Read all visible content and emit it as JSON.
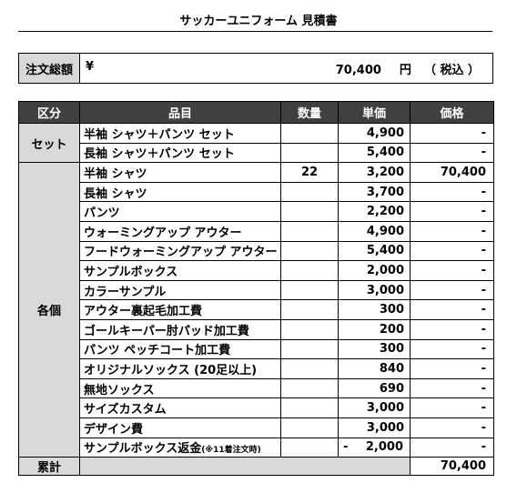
{
  "title": "サッカーユニフォーム 見積書",
  "total_box": {
    "label": "注文総額",
    "currency": "¥",
    "amount": "70,400",
    "unit": "円",
    "tax": "（ 税込 ）"
  },
  "columns": {
    "category": "区分",
    "item": "品目",
    "quantity": "数量",
    "unit_price": "単価",
    "price": "価格"
  },
  "categories": {
    "set": "セット",
    "each": "各個",
    "subtotal": "累計"
  },
  "set_rows": [
    {
      "name": "半袖 シャツ＋パンツ セット",
      "qty": "",
      "unit_price": "4,900",
      "price": "-"
    },
    {
      "name": "長袖 シャツ＋パンツ セット",
      "qty": "",
      "unit_price": "5,400",
      "price": "-"
    }
  ],
  "each_rows": [
    {
      "name": "半袖 シャツ",
      "qty": "22",
      "unit_price": "3,200",
      "price": "70,400"
    },
    {
      "name": "長袖 シャツ",
      "qty": "",
      "unit_price": "3,700",
      "price": "-"
    },
    {
      "name": "パンツ",
      "qty": "",
      "unit_price": "2,200",
      "price": "-"
    },
    {
      "name": "ウォーミングアップ  アウター",
      "qty": "",
      "unit_price": "4,900",
      "price": "-"
    },
    {
      "name": "フードウォーミングアップ アウター",
      "qty": "",
      "unit_price": "5,400",
      "price": "-"
    },
    {
      "name": "サンプルボックス",
      "qty": "",
      "unit_price": "2,000",
      "price": "-"
    },
    {
      "name": "カラーサンプル",
      "qty": "",
      "unit_price": "3,000",
      "price": "-"
    },
    {
      "name": "アウター裏起毛加工費",
      "qty": "",
      "unit_price": "300",
      "price": "-"
    },
    {
      "name": "ゴールキーパー肘パッド加工費",
      "qty": "",
      "unit_price": "200",
      "price": "-"
    },
    {
      "name": "パンツ ペッチコート加工費",
      "qty": "",
      "unit_price": "300",
      "price": "-"
    },
    {
      "name": "オリジナルソックス (20足以上)",
      "qty": "",
      "unit_price": "840",
      "price": "-"
    },
    {
      "name": "無地ソックス",
      "qty": "",
      "unit_price": "690",
      "price": "-"
    },
    {
      "name": "サイズカスタム",
      "qty": "",
      "unit_price": "3,000",
      "price": "-"
    },
    {
      "name": "デザイン費",
      "qty": "",
      "unit_price": "3,000",
      "price": "-"
    }
  ],
  "refund_row": {
    "name": "サンプルボックス返金",
    "note": "(※11着注文時)",
    "sign": "-",
    "unit_price": "2,000",
    "price": "-"
  },
  "subtotal_price": "70,400",
  "colors": {
    "header_bg": "#404040",
    "label_bg": "#d9d9d9",
    "comment_marker": "#e00000"
  }
}
